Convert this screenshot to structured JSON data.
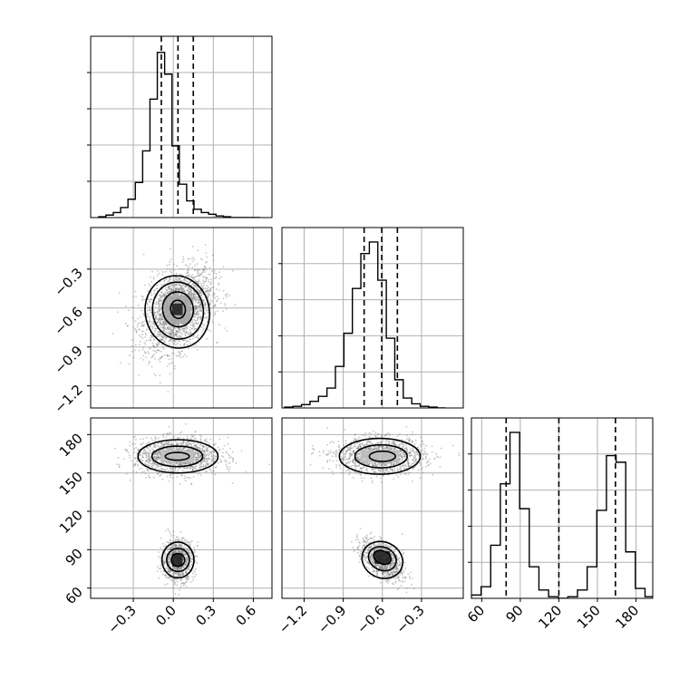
{
  "chart_data": {
    "type": "corner",
    "grid": true,
    "colors": {
      "hist": "#000000",
      "contour": "#000000",
      "points": "#808080",
      "grid": "#b0b0b0"
    },
    "parameters": [
      {
        "xlim": [
          -0.62,
          0.74
        ],
        "ticks": [
          -0.3,
          0.0,
          0.3,
          0.6
        ],
        "tick_labels": [
          "−0.3",
          "0.0",
          "0.3",
          "0.6"
        ]
      },
      {
        "xlim": [
          -1.37,
          0.02
        ],
        "ticks": [
          -1.2,
          -0.9,
          -0.6,
          -0.3
        ],
        "tick_labels": [
          "−1.2",
          "−0.9",
          "−0.6",
          "−0.3"
        ]
      },
      {
        "xlim": [
          52,
          193
        ],
        "ticks": [
          60,
          90,
          120,
          150,
          180
        ],
        "tick_labels": [
          "60",
          "90",
          "120",
          "150",
          "180"
        ]
      }
    ],
    "histograms": [
      {
        "parameter": 0,
        "bins": [
          -0.56,
          -0.505,
          -0.45,
          -0.395,
          -0.34,
          -0.285,
          -0.23,
          -0.175,
          -0.12,
          -0.065,
          -0.01,
          0.045,
          0.1,
          0.155,
          0.21,
          0.265,
          0.32,
          0.375,
          0.43,
          0.485,
          0.54,
          0.595,
          0.65
        ],
        "counts": [
          0.005,
          0.015,
          0.03,
          0.06,
          0.11,
          0.21,
          0.4,
          0.71,
          0.99,
          0.86,
          0.43,
          0.2,
          0.1,
          0.05,
          0.03,
          0.02,
          0.01,
          0.005,
          0,
          0,
          0,
          0
        ],
        "quantiles": [
          -0.09,
          0.035,
          0.15
        ]
      },
      {
        "parameter": 1,
        "bins": [
          -1.35,
          -1.285,
          -1.22,
          -1.155,
          -1.09,
          -1.025,
          -0.96,
          -0.895,
          -0.83,
          -0.765,
          -0.7,
          -0.635,
          -0.57,
          -0.505,
          -0.44,
          -0.375,
          -0.31,
          -0.245,
          -0.18,
          -0.115
        ],
        "counts": [
          0.005,
          0.01,
          0.02,
          0.04,
          0.07,
          0.12,
          0.25,
          0.45,
          0.72,
          0.93,
          1.0,
          0.77,
          0.42,
          0.17,
          0.06,
          0.025,
          0.01,
          0.005,
          0
        ],
        "quantiles": [
          -0.74,
          -0.605,
          -0.485
        ]
      },
      {
        "parameter": 2,
        "bins": [
          52,
          59.5,
          67,
          74.5,
          82,
          89.5,
          97,
          104.5,
          112,
          119.5,
          127,
          134.5,
          142,
          149.5,
          157,
          164.5,
          172,
          179.5,
          187,
          194.5
        ],
        "counts": [
          0.02,
          0.07,
          0.32,
          0.69,
          1.0,
          0.54,
          0.19,
          0.05,
          0.01,
          0,
          0.01,
          0.05,
          0.19,
          0.53,
          0.86,
          0.82,
          0.28,
          0.06,
          0.01
        ],
        "quantiles": [
          79,
          120,
          164
        ]
      }
    ],
    "scatter_panels": [
      {
        "x_param": 0,
        "y_param": 1,
        "point_clusters": [
          {
            "n": 2200,
            "mean": [
              0.035,
              -0.61
            ],
            "sd": [
              0.13,
              0.16
            ],
            "rho": 0.35
          }
        ],
        "density_blocks": [
          {
            "x": 0.03,
            "y": -0.61,
            "w": 0.08,
            "h": 0.09,
            "shade": 0.9
          },
          {
            "x": 0.03,
            "y": -0.61,
            "w": 0.2,
            "h": 0.22,
            "shade": 0.35
          }
        ],
        "contours": [
          {
            "cx": 0.035,
            "cy": -0.61,
            "rx": 0.055,
            "ry": 0.07,
            "rot": 10
          },
          {
            "cx": 0.035,
            "cy": -0.61,
            "rx": 0.115,
            "ry": 0.135,
            "rot": 10
          },
          {
            "cx": 0.035,
            "cy": -0.62,
            "rx": 0.19,
            "ry": 0.22,
            "rot": 10
          },
          {
            "cx": 0.03,
            "cy": -0.63,
            "rx": 0.24,
            "ry": 0.28,
            "rot": 12
          }
        ]
      },
      {
        "x_param": 0,
        "y_param": 2,
        "point_clusters": [
          {
            "n": 1400,
            "mean": [
              0.035,
              163
            ],
            "sd": [
              0.16,
              7
            ],
            "rho": 0
          },
          {
            "n": 900,
            "mean": [
              0.035,
              82
            ],
            "sd": [
              0.06,
              8
            ],
            "rho": 0
          }
        ],
        "density_blocks": [
          {
            "x": 0.03,
            "y": 82,
            "w": 0.08,
            "h": 10,
            "shade": 0.9
          },
          {
            "x": 0.03,
            "y": 163,
            "w": 0.25,
            "h": 10,
            "shade": 0.25
          }
        ],
        "contours": [
          {
            "cx": 0.03,
            "cy": 163,
            "rx": 0.09,
            "ry": 3,
            "rot": 0
          },
          {
            "cx": 0.03,
            "cy": 163,
            "rx": 0.19,
            "ry": 8,
            "rot": 0
          },
          {
            "cx": 0.035,
            "cy": 163,
            "rx": 0.3,
            "ry": 13,
            "rot": 0
          },
          {
            "cx": 0.035,
            "cy": 82,
            "rx": 0.05,
            "ry": 5,
            "rot": 0
          },
          {
            "cx": 0.035,
            "cy": 82,
            "rx": 0.085,
            "ry": 9,
            "rot": 0
          },
          {
            "cx": 0.035,
            "cy": 82,
            "rx": 0.12,
            "ry": 14,
            "rot": 0
          }
        ]
      },
      {
        "x_param": 1,
        "y_param": 2,
        "point_clusters": [
          {
            "n": 1400,
            "mean": [
              -0.62,
              163
            ],
            "sd": [
              0.17,
              7
            ],
            "rho": 0
          },
          {
            "n": 900,
            "mean": [
              -0.6,
              82
            ],
            "sd": [
              0.08,
              8
            ],
            "rho": -0.55
          }
        ],
        "density_blocks": [
          {
            "x": -0.6,
            "y": 84,
            "w": 0.12,
            "h": 10,
            "shade": 0.9
          },
          {
            "x": -0.62,
            "y": 163,
            "w": 0.3,
            "h": 10,
            "shade": 0.25
          }
        ],
        "contours": [
          {
            "cx": -0.6,
            "cy": 163,
            "rx": 0.1,
            "ry": 4,
            "rot": 0
          },
          {
            "cx": -0.61,
            "cy": 163,
            "rx": 0.2,
            "ry": 9,
            "rot": 0
          },
          {
            "cx": -0.62,
            "cy": 163,
            "rx": 0.31,
            "ry": 14,
            "rot": 0
          },
          {
            "cx": -0.6,
            "cy": 84,
            "rx": 0.07,
            "ry": 5,
            "rot": -25
          },
          {
            "cx": -0.6,
            "cy": 83,
            "rx": 0.11,
            "ry": 9,
            "rot": -25
          },
          {
            "cx": -0.6,
            "cy": 82,
            "rx": 0.16,
            "ry": 14,
            "rot": -25
          }
        ]
      }
    ]
  }
}
